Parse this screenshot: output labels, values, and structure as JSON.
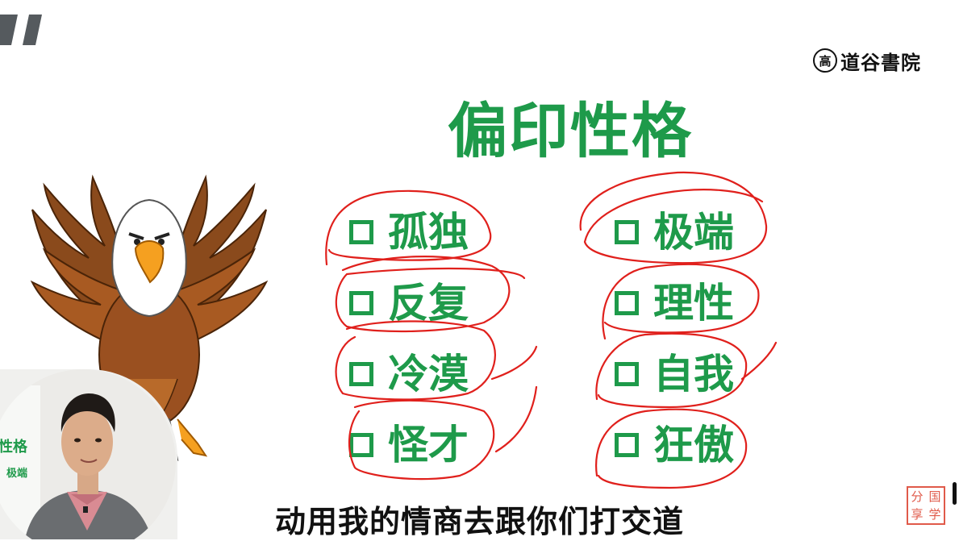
{
  "logo": {
    "seal": "高",
    "text": "道谷書院"
  },
  "title": "偏印性格",
  "traits_left": [
    "孤独",
    "反复",
    "冷漠",
    "怪才"
  ],
  "traits_right": [
    "极端",
    "理性",
    "自我",
    "狂傲"
  ],
  "webcam_board": {
    "heading": "性格",
    "item1": "极端"
  },
  "subtitle": "动用我的情商去跟你们打交道",
  "stamp": [
    "分",
    "国",
    "享",
    "学"
  ],
  "colors": {
    "green": "#1e9a4a",
    "annotation_red": "#e0201c",
    "stamp_red": "#e05a4a"
  },
  "icons": [
    "eagle-illustration",
    "checkbox-icon",
    "presenter-webcam"
  ]
}
